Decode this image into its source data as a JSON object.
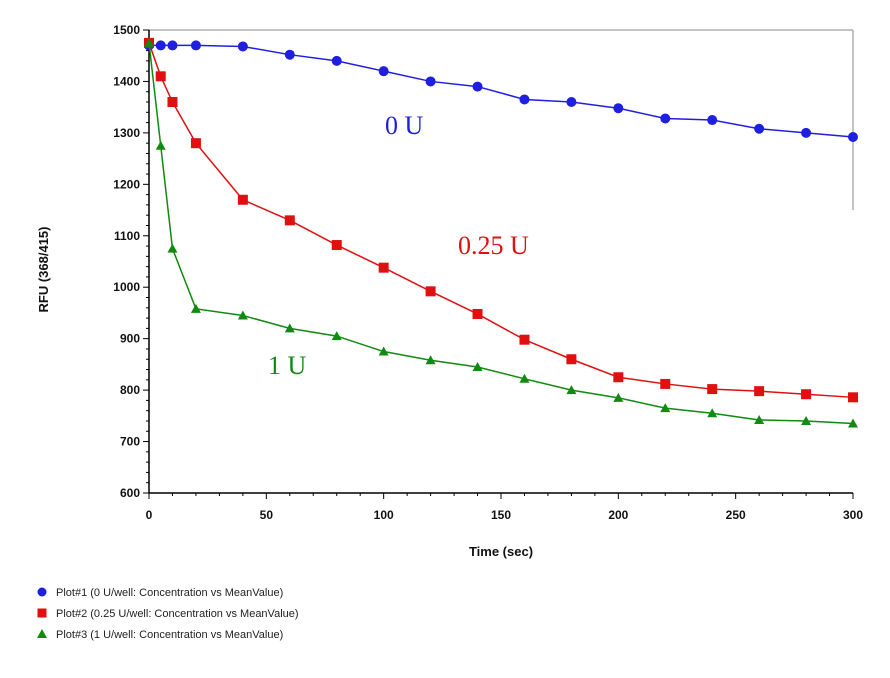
{
  "chart_data": {
    "type": "line",
    "xlabel": "Time (sec)",
    "ylabel": "RFU (368/415)",
    "xlim": [
      0,
      300
    ],
    "ylim": [
      600,
      1500
    ],
    "xticks": [
      0,
      50,
      100,
      150,
      200,
      250,
      300
    ],
    "yticks": [
      600,
      700,
      800,
      900,
      1000,
      1100,
      1200,
      1300,
      1400,
      1500
    ],
    "grid": false,
    "legend_position": "bottom-left",
    "series": [
      {
        "name": "Plot#1 (0 U/well: Concentration vs MeanValue)",
        "annotation": "0 U",
        "color": "#1f1fe0",
        "marker": "circle",
        "x": [
          0,
          5,
          10,
          20,
          40,
          60,
          80,
          100,
          120,
          140,
          160,
          180,
          200,
          220,
          240,
          260,
          280,
          300
        ],
        "y": [
          1470,
          1470,
          1470,
          1470,
          1468,
          1452,
          1440,
          1420,
          1400,
          1390,
          1365,
          1360,
          1348,
          1328,
          1325,
          1308,
          1300,
          1292
        ]
      },
      {
        "name": "Plot#2 (0.25 U/well: Concentration vs MeanValue)",
        "annotation": "0.25 U",
        "color": "#e01010",
        "marker": "square",
        "x": [
          0,
          5,
          10,
          20,
          40,
          60,
          80,
          100,
          120,
          140,
          160,
          180,
          200,
          220,
          240,
          260,
          280,
          300
        ],
        "y": [
          1475,
          1410,
          1360,
          1280,
          1170,
          1130,
          1082,
          1038,
          992,
          948,
          898,
          860,
          825,
          812,
          802,
          798,
          792,
          786
        ]
      },
      {
        "name": "Plot#3 (1 U/well: Concentration vs MeanValue)",
        "annotation": "1 U",
        "color": "#108a10",
        "marker": "triangle",
        "x": [
          0,
          5,
          10,
          20,
          40,
          60,
          80,
          100,
          120,
          140,
          160,
          180,
          200,
          220,
          240,
          260,
          280,
          300
        ],
        "y": [
          1475,
          1275,
          1075,
          958,
          945,
          920,
          905,
          875,
          858,
          845,
          822,
          800,
          785,
          765,
          755,
          742,
          740,
          735
        ]
      }
    ]
  }
}
